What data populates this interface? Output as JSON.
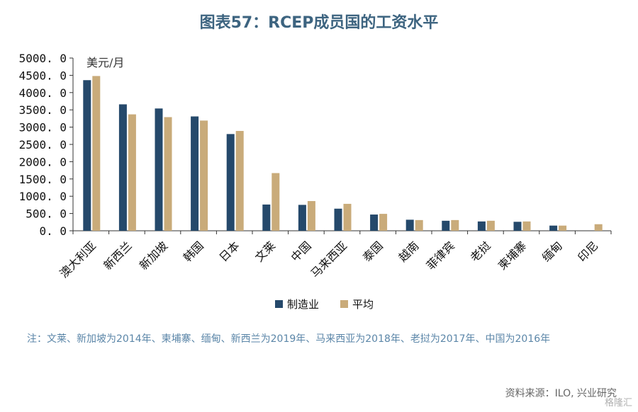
{
  "title": "图表57：RCEP成员国的工资水平",
  "chart_data": {
    "type": "bar",
    "unit_label": "美元/月",
    "categories": [
      "澳大利亚",
      "新西兰",
      "新加坡",
      "韩国",
      "日本",
      "文莱",
      "中国",
      "马来西亚",
      "泰国",
      "越南",
      "菲律宾",
      "老挝",
      "柬埔寨",
      "缅甸",
      "印尼"
    ],
    "series": [
      {
        "name": "制造业",
        "color": "#25496b",
        "values": [
          4360,
          3660,
          3540,
          3310,
          2800,
          760,
          750,
          640,
          470,
          320,
          290,
          270,
          260,
          150,
          null
        ]
      },
      {
        "name": "平均",
        "color": "#c9ab7a",
        "values": [
          4480,
          3370,
          3290,
          3190,
          2890,
          1670,
          860,
          780,
          490,
          310,
          310,
          290,
          270,
          150,
          190
        ]
      }
    ],
    "y_ticks": [
      "5000. 0",
      "4500. 0",
      "4000. 0",
      "3500. 0",
      "3000. 0",
      "2500. 0",
      "2000. 0",
      "1500. 0",
      "1000. 0",
      "500. 0",
      "0. 0"
    ],
    "ylim": [
      0,
      5000
    ],
    "legend_position": "bottom"
  },
  "note": "注：文莱、新加坡为2014年、柬埔寨、缅甸、新西兰为2019年、马来西亚为2018年、老挝为2017年、中国为2016年",
  "source": "资料来源：ILO, 兴业研究",
  "watermark": "格隆汇"
}
